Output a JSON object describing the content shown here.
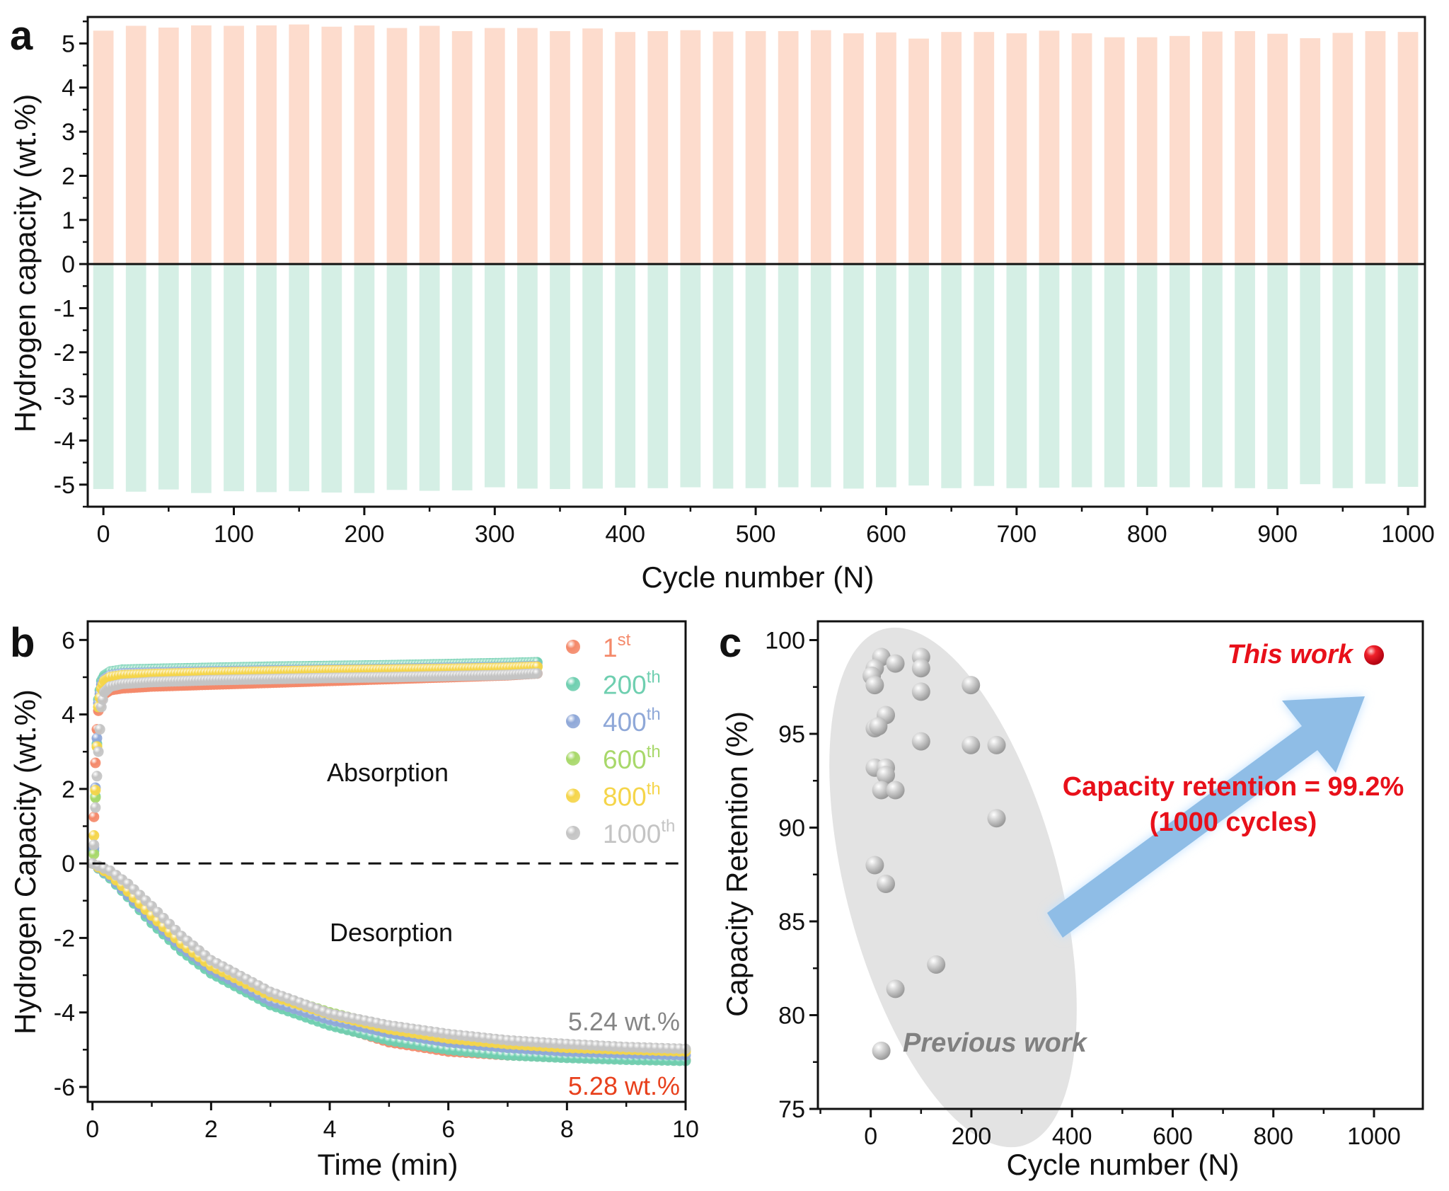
{
  "chart_data": [
    {
      "panel": "a",
      "type": "bar",
      "xlabel": "Cycle number (N)",
      "ylabel": "Hydrogen capacity (wt.%)",
      "xlim": [
        -12,
        1013
      ],
      "ylim": [
        -5.5,
        5.6
      ],
      "xticks": [
        0,
        100,
        200,
        300,
        400,
        500,
        600,
        700,
        800,
        900,
        1000
      ],
      "yticks": [
        5,
        4,
        3,
        2,
        1,
        0,
        -1,
        -2,
        -3,
        -4,
        -5
      ],
      "colors": {
        "absorption": "#fddccd",
        "desorption": "#d5efe5"
      },
      "x": [
        0,
        25,
        50,
        75,
        100,
        125,
        150,
        175,
        200,
        225,
        250,
        275,
        300,
        325,
        350,
        375,
        400,
        425,
        450,
        475,
        500,
        525,
        550,
        575,
        600,
        625,
        650,
        675,
        700,
        725,
        750,
        775,
        800,
        825,
        850,
        875,
        900,
        925,
        950,
        975,
        1000
      ],
      "series": [
        {
          "values": [
            5.29,
            5.4,
            5.36,
            5.41,
            5.4,
            5.41,
            5.43,
            5.38,
            5.41,
            5.35,
            5.4,
            5.28,
            5.35,
            5.35,
            5.28,
            5.34,
            5.26,
            5.28,
            5.3,
            5.27,
            5.28,
            5.28,
            5.3,
            5.23,
            5.25,
            5.11,
            5.26,
            5.26,
            5.23,
            5.29,
            5.23,
            5.14,
            5.14,
            5.17,
            5.27,
            5.28,
            5.22,
            5.12,
            5.24,
            5.28,
            5.26
          ]
        },
        {
          "values": [
            -5.1,
            -5.16,
            -5.11,
            -5.19,
            -5.15,
            -5.17,
            -5.15,
            -5.18,
            -5.19,
            -5.12,
            -5.14,
            -5.13,
            -5.06,
            -5.09,
            -5.1,
            -5.09,
            -5.07,
            -5.08,
            -5.06,
            -5.09,
            -5.08,
            -5.06,
            -5.06,
            -5.09,
            -5.06,
            -5.02,
            -5.08,
            -5.03,
            -5.08,
            -5.07,
            -5.06,
            -5.06,
            -5.05,
            -5.06,
            -5.06,
            -5.08,
            -5.1,
            -4.99,
            -5.08,
            -4.98,
            -5.05
          ]
        }
      ],
      "grid": false
    },
    {
      "panel": "b",
      "type": "scatter",
      "xlabel": "Time (min)",
      "ylabel": "Hydrogen Capacity (wt.%)",
      "xlim": [
        -0.08,
        10
      ],
      "ylim": [
        -6.4,
        6.5
      ],
      "xticks": [
        0,
        2,
        4,
        6,
        8,
        10
      ],
      "yticks": [
        6,
        4,
        2,
        0,
        -2,
        -4,
        -6
      ],
      "legend_position": "top-right",
      "annotations": {
        "absorption": "Absorption",
        "desorption": "Desorption",
        "gray_value": "5.24 wt.%",
        "red_value": "5.28 wt.%"
      },
      "annotation_colors": {
        "gray_value": "#858585",
        "red_value": "#e8401c"
      },
      "absorption_t": [
        0,
        0.03,
        0.06,
        0.1,
        0.15,
        0.2,
        0.3,
        0.5,
        1,
        2,
        3,
        4,
        5,
        6,
        7,
        7.5
      ],
      "desorption_t": [
        0,
        0.3,
        0.6,
        1,
        1.5,
        2,
        3,
        4,
        5,
        6,
        7,
        8,
        9,
        10
      ],
      "series": [
        {
          "name": "1st",
          "sup": "st",
          "base": "1",
          "color": "#f4896a",
          "absorption": [
            0,
            1.5,
            3.3,
            4.1,
            4.4,
            4.55,
            4.65,
            4.7,
            4.75,
            4.8,
            4.85,
            4.9,
            4.95,
            5.0,
            5.05,
            5.1
          ],
          "desorption": [
            0,
            -0.25,
            -0.7,
            -1.35,
            -2.1,
            -2.7,
            -3.6,
            -4.3,
            -4.8,
            -5.05,
            -5.15,
            -5.2,
            -5.24,
            -5.28
          ]
        },
        {
          "name": "200th",
          "sup": "th",
          "base": "200",
          "color": "#6fcfb0",
          "absorption": [
            0,
            0.4,
            2.5,
            4.4,
            4.9,
            5.05,
            5.15,
            5.2,
            5.22,
            5.25,
            5.28,
            5.3,
            5.32,
            5.35,
            5.38,
            5.4
          ],
          "desorption": [
            0,
            -0.4,
            -0.9,
            -1.6,
            -2.35,
            -2.95,
            -3.8,
            -4.35,
            -4.75,
            -5.0,
            -5.15,
            -5.22,
            -5.27,
            -5.3
          ]
        },
        {
          "name": "400th",
          "sup": "th",
          "base": "400",
          "color": "#8fa8d8",
          "absorption": [
            0,
            0.5,
            2.8,
            4.3,
            4.8,
            4.95,
            5.05,
            5.1,
            5.12,
            5.15,
            5.18,
            5.2,
            5.22,
            5.25,
            5.27,
            5.3
          ],
          "desorption": [
            0,
            -0.35,
            -0.85,
            -1.5,
            -2.25,
            -2.85,
            -3.7,
            -4.2,
            -4.55,
            -4.8,
            -4.95,
            -5.05,
            -5.1,
            -5.15
          ]
        },
        {
          "name": "600th",
          "sup": "th",
          "base": "600",
          "color": "#a8d86a",
          "absorption": [
            0,
            0.3,
            2.5,
            4.2,
            4.7,
            4.9,
            5.0,
            5.05,
            5.08,
            5.12,
            5.15,
            5.18,
            5.2,
            5.22,
            5.25,
            5.28
          ],
          "desorption": [
            0,
            -0.3,
            -0.75,
            -1.4,
            -2.1,
            -2.7,
            -3.5,
            -4.0,
            -4.4,
            -4.65,
            -4.8,
            -4.9,
            -4.98,
            -5.02
          ]
        },
        {
          "name": "800th",
          "sup": "th",
          "base": "800",
          "color": "#f5d54a",
          "absorption": [
            0,
            0.9,
            2.5,
            4.2,
            4.7,
            4.9,
            5.0,
            5.05,
            5.08,
            5.12,
            5.15,
            5.18,
            5.2,
            5.22,
            5.25,
            5.28
          ],
          "desorption": [
            0,
            -0.3,
            -0.75,
            -1.4,
            -2.15,
            -2.75,
            -3.55,
            -4.05,
            -4.45,
            -4.7,
            -4.85,
            -4.95,
            -5.0,
            -5.05
          ]
        },
        {
          "name": "1000th",
          "sup": "th",
          "base": "1000",
          "color": "#c4c4c4",
          "absorption": [
            0,
            0.6,
            1.95,
            3.0,
            4.2,
            4.6,
            4.75,
            4.82,
            4.87,
            4.92,
            4.95,
            4.98,
            5.0,
            5.03,
            5.06,
            5.1
          ],
          "desorption": [
            0,
            -0.2,
            -0.55,
            -1.15,
            -1.95,
            -2.6,
            -3.45,
            -4.03,
            -4.35,
            -4.58,
            -4.75,
            -4.85,
            -4.93,
            -4.98
          ]
        }
      ],
      "zero_line": "dashed"
    },
    {
      "panel": "c",
      "type": "scatter",
      "xlabel": "Cycle number (N)",
      "ylabel": "Capacity Retention (%)",
      "xlim": [
        -105,
        1097
      ],
      "ylim": [
        75,
        101
      ],
      "xticks": [
        0,
        200,
        400,
        600,
        800,
        1000
      ],
      "yticks": [
        100,
        95,
        90,
        85,
        80,
        75
      ],
      "previous_work": {
        "label": "Previous work",
        "color": "#b5b5b5",
        "points": [
          [
            21,
            99.1
          ],
          [
            49,
            98.75
          ],
          [
            100,
            99.1
          ],
          [
            100,
            98.5
          ],
          [
            8,
            98.5
          ],
          [
            2,
            98.1
          ],
          [
            8,
            97.6
          ],
          [
            199,
            97.6
          ],
          [
            100,
            97.25
          ],
          [
            30,
            96.0
          ],
          [
            8,
            95.3
          ],
          [
            15,
            95.4
          ],
          [
            100,
            94.6
          ],
          [
            199,
            94.4
          ],
          [
            250,
            94.4
          ],
          [
            8,
            93.2
          ],
          [
            30,
            93.2
          ],
          [
            30,
            92.8
          ],
          [
            21,
            92.0
          ],
          [
            49,
            92.0
          ],
          [
            250,
            90.5
          ],
          [
            8,
            88.0
          ],
          [
            30,
            87.0
          ],
          [
            130,
            82.7
          ],
          [
            49,
            81.4
          ],
          [
            21,
            78.1
          ]
        ]
      },
      "this_work": {
        "label": "This work",
        "color": "#e8101a",
        "point": [
          1000,
          99.2
        ]
      },
      "annotation": {
        "line1": "Capacity retention = 99.2%",
        "line2": "(1000 cycles)"
      },
      "annotation_color": "#e8101a",
      "arrow_color": "#8fbde6"
    }
  ],
  "panel_labels": {
    "a": "a",
    "b": "b",
    "c": "c"
  }
}
